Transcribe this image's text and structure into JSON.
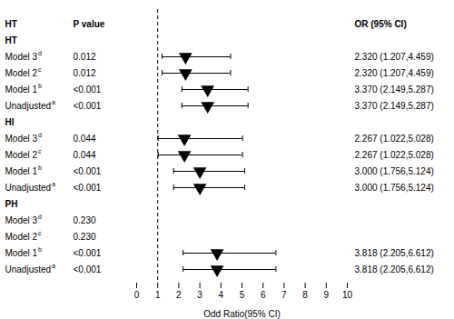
{
  "chart_data": {
    "type": "forest",
    "xlabel": "Odd Ratio(95% CI)",
    "xlim": [
      0,
      10
    ],
    "xticks": [
      0,
      1,
      2,
      3,
      4,
      5,
      6,
      7,
      8,
      9,
      10
    ],
    "reference_line": 1,
    "column_headers": [
      "HT",
      "P value",
      "OR (95% CI)"
    ],
    "color": "#000000",
    "marker": "triangle-down",
    "grid": false,
    "groups": [
      {
        "label": "HT",
        "rows": [
          {
            "name": "Model 3",
            "superscript": "d",
            "pvalue": "0.012",
            "value": 2.32,
            "ci_low": 1.207,
            "ci_high": 4.459,
            "value_label": "2.320 (1.207,4.459)"
          },
          {
            "name": "Model 2",
            "superscript": "c",
            "pvalue": "0.012",
            "value": 2.32,
            "ci_low": 1.207,
            "ci_high": 4.459,
            "value_label": "2.320 (1.207,4.459)"
          },
          {
            "name": "Model 1",
            "superscript": "b",
            "pvalue": "<0.001",
            "value": 3.37,
            "ci_low": 2.149,
            "ci_high": 5.287,
            "value_label": "3.370 (2.149,5.287)"
          },
          {
            "name": "Unadjusted",
            "superscript": "a",
            "pvalue": "<0.001",
            "value": 3.37,
            "ci_low": 2.149,
            "ci_high": 5.287,
            "value_label": "3.370 (2.149,5.287)"
          }
        ]
      },
      {
        "label": "HI",
        "rows": [
          {
            "name": "Model 3",
            "superscript": "d",
            "pvalue": "0.044",
            "value": 2.267,
            "ci_low": 1.022,
            "ci_high": 5.028,
            "value_label": "2.267 (1.022,5.028)"
          },
          {
            "name": "Model 2",
            "superscript": "c",
            "pvalue": "0.044",
            "value": 2.267,
            "ci_low": 1.022,
            "ci_high": 5.028,
            "value_label": "2.267 (1.022,5.028)"
          },
          {
            "name": "Model 1",
            "superscript": "b",
            "pvalue": "<0.001",
            "value": 3.0,
            "ci_low": 1.756,
            "ci_high": 5.124,
            "value_label": "3.000 (1.756,5.124)"
          },
          {
            "name": "Unadjusted",
            "superscript": "a",
            "pvalue": "<0.001",
            "value": 3.0,
            "ci_low": 1.756,
            "ci_high": 5.124,
            "value_label": "3.000 (1.756,5.124)"
          }
        ]
      },
      {
        "label": "PH",
        "rows": [
          {
            "name": "Model 3",
            "superscript": "d",
            "pvalue": "0.230",
            "value": null,
            "ci_low": null,
            "ci_high": null,
            "value_label": null
          },
          {
            "name": "Model 2",
            "superscript": "c",
            "pvalue": "0.230",
            "value": null,
            "ci_low": null,
            "ci_high": null,
            "value_label": null
          },
          {
            "name": "Model 1",
            "superscript": "b",
            "pvalue": "<0.001",
            "value": 3.818,
            "ci_low": 2.205,
            "ci_high": 6.612,
            "value_label": "3.818 (2.205,6.612)"
          },
          {
            "name": "Unadjusted",
            "superscript": "a",
            "pvalue": "<0.001",
            "value": 3.818,
            "ci_low": 2.205,
            "ci_high": 6.612,
            "value_label": "3.818 (2.205,6.612)"
          }
        ]
      }
    ]
  }
}
